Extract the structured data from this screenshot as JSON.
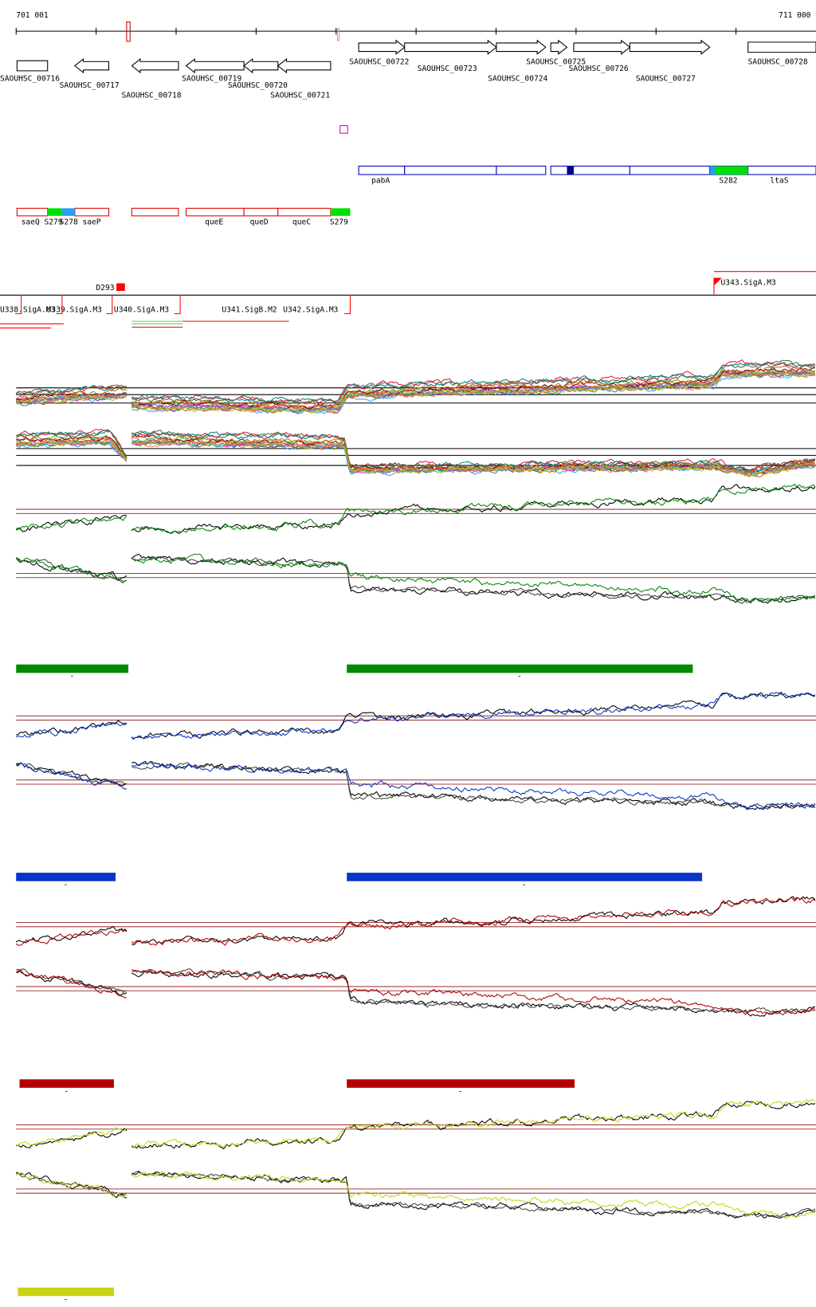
{
  "axis": {
    "start": "701 001",
    "end": "711 000"
  },
  "genes": [
    "SAOUHSC_00716",
    "SAOUHSC_00717",
    "SAOUHSC_00718",
    "SAOUHSC_00719",
    "SAOUHSC_00720",
    "SAOUHSC_00721",
    "SAOUHSC_00722",
    "SAOUHSC_00723",
    "SAOUHSC_00724",
    "SAOUHSC_00725",
    "SAOUHSC_00726",
    "SAOUHSC_00727",
    "SAOUHSC_00728"
  ],
  "features": {
    "row1": [
      "pabA",
      "S282",
      "ltaS"
    ],
    "row2": [
      "saeQ",
      "S279",
      "S278",
      "saeP",
      "queE",
      "queD",
      "queC",
      "S279"
    ]
  },
  "markers": {
    "d293": "D293",
    "u343": "U343.SigA.M3",
    "promoters": [
      "U338.SigA.M3",
      "U339.SigA.M3",
      "U340.SigA.M3",
      "U341.SigB.M2",
      "U342.SigA.M3"
    ]
  },
  "tracks": [
    {
      "color": "#008a00",
      "segments": [
        "-",
        "-"
      ]
    },
    {
      "color": "#0a33c8",
      "segments": [
        "-",
        "-"
      ]
    },
    {
      "color": "#b40000",
      "segments": [
        "-",
        "-"
      ]
    },
    {
      "color": "#c8d414",
      "segments": [
        "-"
      ]
    }
  ]
}
